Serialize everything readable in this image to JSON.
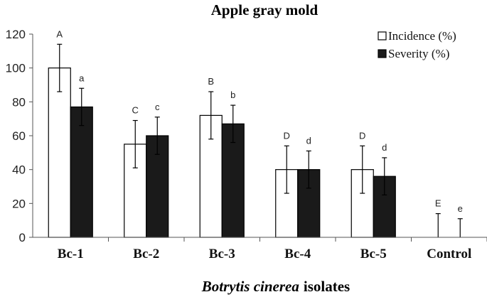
{
  "chart_data": {
    "type": "bar",
    "title": "Apple gray mold",
    "xlabel_italic": "Botrytis cinerea",
    "xlabel_rest": "isolates",
    "ylabel": "",
    "ylim": [
      0,
      120
    ],
    "yticks": [
      "0",
      "20",
      "40",
      "60",
      "80",
      "100",
      "120"
    ],
    "categories": [
      "Bc-1",
      "Bc-2",
      "Bc-3",
      "Bc-4",
      "Bc-5",
      "Control"
    ],
    "legend_position": "top-right",
    "series": [
      {
        "name": "Incidence (%)",
        "fill": "#ffffff",
        "values": [
          100,
          55,
          72,
          40,
          40,
          0
        ],
        "errors": [
          14,
          14,
          14,
          14,
          14,
          14
        ],
        "letters": [
          "A",
          "C",
          "B",
          "D",
          "D",
          "E"
        ]
      },
      {
        "name": "Severity (%)",
        "fill": "#1a1a1a",
        "values": [
          77,
          60,
          67,
          40,
          36,
          0
        ],
        "errors": [
          11,
          11,
          11,
          11,
          11,
          11
        ],
        "letters": [
          "a",
          "c",
          "b",
          "d",
          "d",
          "e"
        ]
      }
    ]
  }
}
